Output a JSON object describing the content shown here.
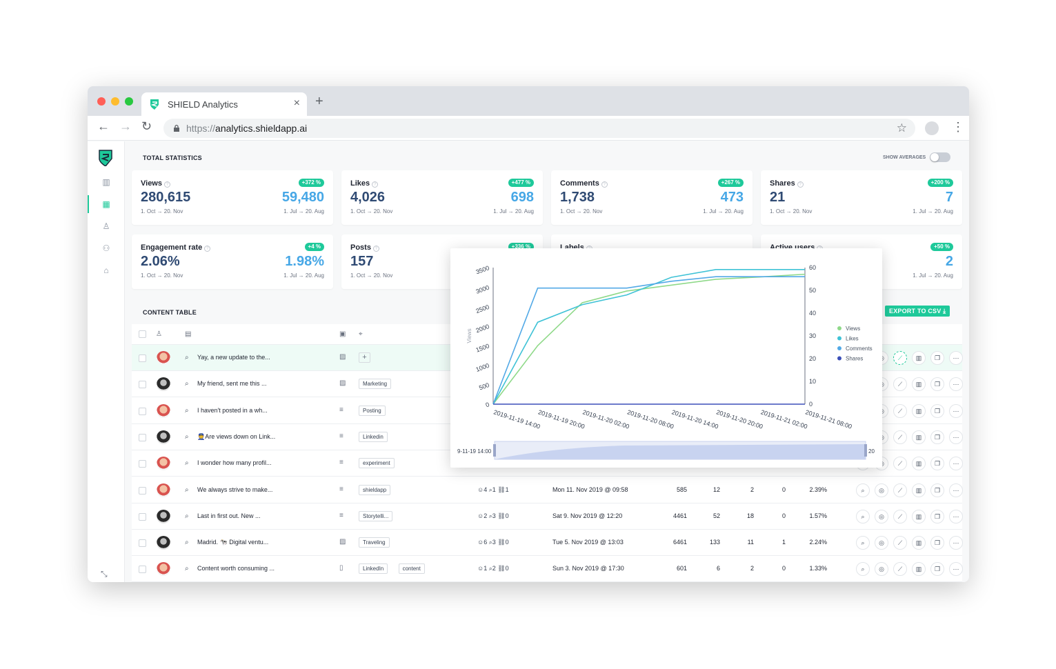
{
  "browser": {
    "tab_title": "SHIELD Analytics",
    "tab_close": "×",
    "new_tab": "+",
    "url_protocol": "https://",
    "url_host": "analytics.shieldapp.ai",
    "colors": {
      "close": "#ff5f57",
      "minimize": "#febc2e",
      "maximize": "#28c840"
    }
  },
  "sidebar": {
    "items": [
      "chart-icon",
      "table-icon",
      "user-icon",
      "users-icon",
      "bank-icon"
    ],
    "active": "table-icon",
    "collapse_icon": "collapse-icon"
  },
  "stats": {
    "title": "TOTAL STATISTICS",
    "show_averages_label": "SHOW AVERAGES",
    "cards": [
      {
        "label": "Views",
        "badge": "+372 %",
        "value": "280,615",
        "previous": "59,480",
        "range_current": "1. Oct → 20. Nov",
        "range_previous": "1. Jul → 20. Aug"
      },
      {
        "label": "Likes",
        "badge": "+477 %",
        "value": "4,026",
        "previous": "698",
        "range_current": "1. Oct → 20. Nov",
        "range_previous": "1. Jul → 20. Aug"
      },
      {
        "label": "Comments",
        "badge": "+267 %",
        "value": "1,738",
        "previous": "473",
        "range_current": "1. Oct → 20. Nov",
        "range_previous": "1. Jul → 20. Aug"
      },
      {
        "label": "Shares",
        "badge": "+200 %",
        "value": "21",
        "previous": "7",
        "range_current": "1. Oct → 20. Nov",
        "range_previous": "1. Jul → 20. Aug"
      },
      {
        "label": "Engagement rate",
        "badge": "+4 %",
        "value": "2.06%",
        "previous": "1.98%",
        "range_current": "1. Oct → 20. Nov",
        "range_previous": "1. Jul → 20. Aug"
      },
      {
        "label": "Posts",
        "badge": "+336 %",
        "value": "157",
        "previous": "",
        "range_current": "1. Oct → 20. Nov",
        "range_previous": ""
      },
      {
        "label": "Labels",
        "badge": "",
        "value": "",
        "previous": "",
        "range_current": "",
        "range_previous": ""
      },
      {
        "label": "Active users",
        "badge": "+50 %",
        "value": "",
        "previous": "2",
        "range_current": "",
        "range_previous": "1. Jul → 20. Aug"
      }
    ]
  },
  "content_table": {
    "title": "CONTENT TABLE",
    "export_label": "EXPORT TO CSV ⤓",
    "rows": [
      {
        "avatar": "red",
        "text": "Yay, a new update to the...",
        "type": "image",
        "labels": [],
        "reactions": "",
        "date": "",
        "views": "",
        "likes": "",
        "comments": "",
        "shares": "",
        "rate": ""
      },
      {
        "avatar": "dark",
        "text": "My friend, sent me this ...",
        "type": "image",
        "labels": [
          "Marketing"
        ],
        "reactions": "",
        "date": "",
        "views": "",
        "likes": "",
        "comments": "",
        "shares": "",
        "rate": ""
      },
      {
        "avatar": "red",
        "text": "I haven't posted in a wh...",
        "type": "text",
        "labels": [
          "Posting"
        ],
        "reactions": "",
        "date": "",
        "views": "",
        "likes": "",
        "comments": "",
        "shares": "",
        "rate": ""
      },
      {
        "avatar": "dark",
        "text": "👮Are views down on Link...",
        "type": "text",
        "labels": [
          "Linkedin"
        ],
        "reactions": "",
        "date": "",
        "views": "",
        "likes": "",
        "comments": "",
        "shares": "",
        "rate": ""
      },
      {
        "avatar": "red",
        "text": "I wonder how many profil...",
        "type": "text",
        "labels": [
          "experiment"
        ],
        "reactions": "",
        "date": "",
        "views": "",
        "likes": "",
        "comments": "",
        "shares": "",
        "rate": ""
      },
      {
        "avatar": "red",
        "text": "We always strive to make...",
        "type": "text",
        "labels": [
          "shieldapp"
        ],
        "reactions": "☺4  ⌕1  ⛓1",
        "date": "Mon 11. Nov 2019 @ 09:58",
        "views": "585",
        "likes": "12",
        "comments": "2",
        "shares": "0",
        "rate": "2.39%"
      },
      {
        "avatar": "dark",
        "text": "Last in first out. New ...",
        "type": "text",
        "labels": [
          "Storytelli..."
        ],
        "reactions": "☺2  ⌕3  ⛓0",
        "date": "Sat 9. Nov 2019 @ 12:20",
        "views": "4461",
        "likes": "52",
        "comments": "18",
        "shares": "0",
        "rate": "1.57%"
      },
      {
        "avatar": "dark",
        "text": "Madrid. 🐄 Digital ventu...",
        "type": "image",
        "labels": [
          "Traveling"
        ],
        "reactions": "☺6  ⌕3  ⛓0",
        "date": "Tue 5. Nov 2019 @ 13:03",
        "views": "6461",
        "likes": "133",
        "comments": "11",
        "shares": "1",
        "rate": "2.24%"
      },
      {
        "avatar": "red",
        "text": "Content worth consuming ...",
        "type": "doc",
        "labels": [
          "LinkedIn",
          "content"
        ],
        "reactions": "☺1  ⌕2  ⛓0",
        "date": "Sun 3. Nov 2019 @ 17:30",
        "views": "601",
        "likes": "6",
        "comments": "2",
        "shares": "0",
        "rate": "1.33%"
      }
    ]
  },
  "chart_data": {
    "type": "line",
    "x": [
      "2019-11-19 14:00",
      "2019-11-19 20:00",
      "2019-11-20 02:00",
      "2019-11-20 08:00",
      "2019-11-20 14:00",
      "2019-11-20 20:00",
      "2019-11-21 02:00",
      "2019-11-21 08:00"
    ],
    "ylabel": "Views",
    "ylim": [
      0,
      3500
    ],
    "y_ticks": [
      "0",
      "500",
      "1000",
      "1500",
      "2000",
      "2500",
      "3000",
      "3500"
    ],
    "y2lim": [
      0,
      60
    ],
    "y2_ticks": [
      "0",
      "10",
      "20",
      "30",
      "40",
      "50",
      "60"
    ],
    "x_tick_labels": [
      "2019-11-19 14:00",
      "2019-11-19 20:00",
      "2019-11-20 02:00",
      "2019-11-20 08:00",
      "2019-11-20 14:00",
      "2019-11-20 20:00",
      "2019-11-21 02:00",
      "2019-11-21 08:00"
    ],
    "legend": "right",
    "series": [
      {
        "name": "Views",
        "color": "#8fd989",
        "axis": "left",
        "values": [
          0,
          1500,
          2600,
          2900,
          3050,
          3200,
          3260,
          3330
        ]
      },
      {
        "name": "Likes",
        "color": "#3fc2d6",
        "axis": "left",
        "values": [
          0,
          2100,
          2550,
          2800,
          3250,
          3450,
          3450,
          3450
        ]
      },
      {
        "name": "Comments",
        "color": "#52a9e6",
        "axis": "right",
        "values": [
          0,
          51,
          51,
          51,
          54,
          56,
          56,
          56
        ]
      },
      {
        "name": "Shares",
        "color": "#3b4fb8",
        "axis": "right",
        "values": [
          0,
          0,
          0,
          0,
          0,
          0,
          0,
          0
        ]
      }
    ],
    "zoom_start_label": "9-11-19 14:00",
    "zoom_end_label": "20"
  }
}
